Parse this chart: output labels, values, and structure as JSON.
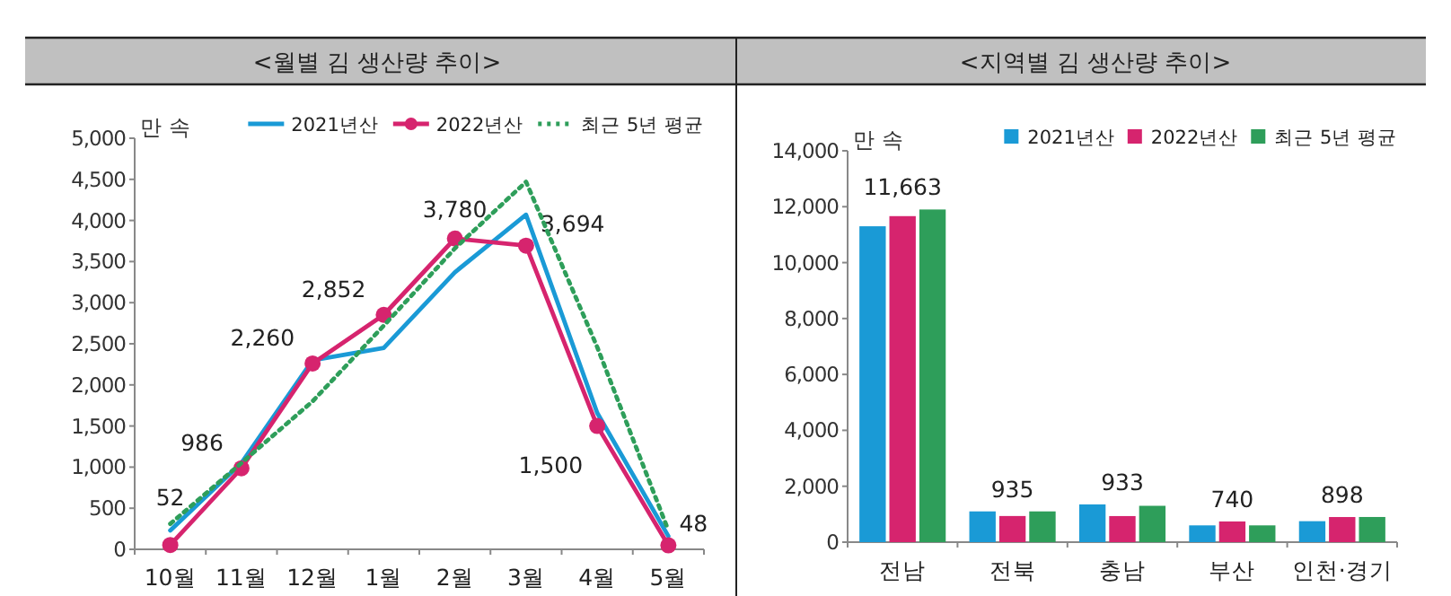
{
  "chart_data": [
    {
      "type": "line",
      "title": "<월별 김 생산량 추이>",
      "ylabel": "만 속",
      "categories": [
        "10월",
        "11월",
        "12월",
        "1월",
        "2월",
        "3월",
        "4월",
        "5월"
      ],
      "series": [
        {
          "name": "2021년산",
          "color": "#1a9ad6",
          "values": [
            230,
            1050,
            2300,
            2450,
            3370,
            4070,
            1660,
            160
          ],
          "marker": "none",
          "line_style": "solid"
        },
        {
          "name": "2022년산",
          "color": "#d6246e",
          "values": [
            52,
            986,
            2260,
            2852,
            3780,
            3694,
            1500,
            48
          ],
          "marker": "circle",
          "line_style": "solid",
          "value_labels": [
            "52",
            "986",
            "2,260",
            "2,852",
            "3,780",
            "3,694",
            "1,500",
            "48"
          ]
        },
        {
          "name": "최근 5년 평균",
          "color": "#2e9e5a",
          "values": [
            310,
            1050,
            1800,
            2720,
            3660,
            4470,
            2460,
            230
          ],
          "marker": "none",
          "line_style": "dotted"
        }
      ],
      "ylim": [
        0,
        5000
      ],
      "yticks": [
        0,
        {
          "value": 500,
          "label": "500"
        },
        {
          "value": 1000,
          "label": "1,000"
        },
        {
          "value": 1500,
          "label": "1,500"
        },
        {
          "value": 2000,
          "label": "2,000"
        },
        {
          "value": 2500,
          "label": "2,500"
        },
        {
          "value": 3000,
          "label": "3,000"
        },
        {
          "value": 3500,
          "label": "3,500"
        },
        {
          "value": 4000,
          "label": "4,000"
        },
        {
          "value": 4500,
          "label": "4,500"
        },
        {
          "value": 5000,
          "label": "5,000"
        }
      ],
      "legend": "top right",
      "grid": false
    },
    {
      "type": "bar",
      "title": "<지역별 김 생산량 추이>",
      "ylabel": "만 속",
      "categories": [
        "전남",
        "전북",
        "충남",
        "부산",
        "인천·경기"
      ],
      "series": [
        {
          "name": "2021년산",
          "color": "#1a9ad6",
          "values": [
            11300,
            1100,
            1350,
            600,
            750
          ]
        },
        {
          "name": "2022년산",
          "color": "#d6246e",
          "values": [
            11663,
            935,
            933,
            740,
            898
          ],
          "value_labels": [
            "11,663",
            "935",
            "933",
            "740",
            "898"
          ]
        },
        {
          "name": "최근 5년 평균",
          "color": "#2e9e5a",
          "values": [
            11900,
            1100,
            1300,
            600,
            900
          ]
        }
      ],
      "ylim": [
        0,
        14000
      ],
      "yticks": [
        0,
        {
          "value": 2000,
          "label": "2,000"
        },
        {
          "value": 4000,
          "label": "4,000"
        },
        {
          "value": 6000,
          "label": "6,000"
        },
        {
          "value": 8000,
          "label": "8,000"
        },
        {
          "value": 10000,
          "label": "10,000"
        },
        {
          "value": 12000,
          "label": "12,000"
        },
        {
          "value": 14000,
          "label": "14,000"
        }
      ],
      "legend": "top right",
      "grid": false
    }
  ]
}
